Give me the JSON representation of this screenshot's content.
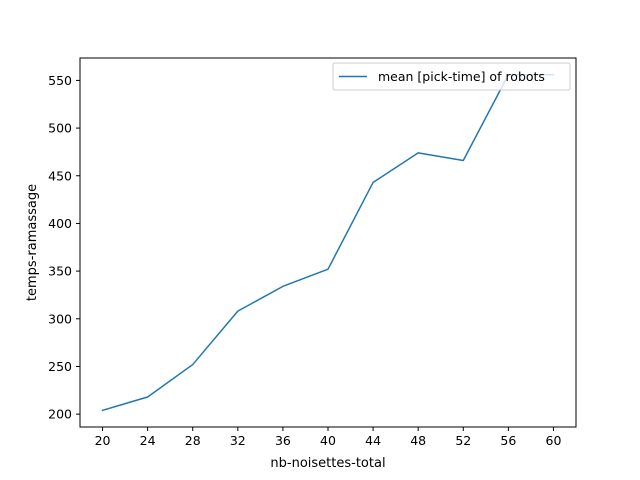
{
  "chart_data": {
    "type": "line",
    "xlabel": "nb-noisettes-total",
    "ylabel": "temps-ramassage",
    "xlim": [
      18.0,
      62.0
    ],
    "ylim": [
      186.5,
      573.5
    ],
    "x_ticks": [
      20,
      24,
      28,
      32,
      36,
      40,
      44,
      48,
      52,
      56,
      60
    ],
    "y_ticks": [
      200,
      250,
      300,
      350,
      400,
      450,
      500,
      550
    ],
    "grid": false,
    "legend_position": "top-right",
    "series": [
      {
        "name": "mean [pick-time] of robots",
        "color": "#1f77b4",
        "x": [
          20,
          24,
          28,
          32,
          36,
          40,
          44,
          48,
          52,
          56,
          60
        ],
        "y": [
          204,
          218,
          252,
          308,
          334,
          352,
          443,
          474,
          466,
          556,
          556
        ]
      }
    ]
  }
}
